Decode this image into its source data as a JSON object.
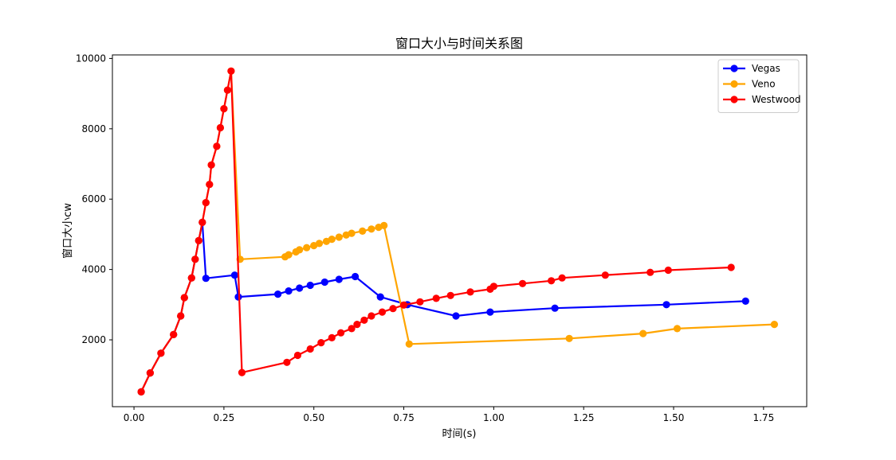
{
  "chart_data": {
    "type": "line",
    "title": "窗口大小与时间关系图",
    "xlabel": "时间(s)",
    "ylabel": "窗口大小cw",
    "xlim": [
      -0.06,
      1.87
    ],
    "ylim": [
      100,
      10100
    ],
    "x_ticks": [
      0.0,
      0.25,
      0.5,
      0.75,
      1.0,
      1.25,
      1.5,
      1.75
    ],
    "x_tick_labels": [
      "0.00",
      "0.25",
      "0.50",
      "0.75",
      "1.00",
      "1.25",
      "1.50",
      "1.75"
    ],
    "y_ticks": [
      2000,
      4000,
      6000,
      8000,
      10000
    ],
    "y_tick_labels": [
      "2000",
      "4000",
      "6000",
      "8000",
      "10000"
    ],
    "grid": false,
    "legend_position": "top-right",
    "series": [
      {
        "name": "Vegas",
        "color": "#0000ff",
        "x": [
          0.02,
          0.045,
          0.075,
          0.11,
          0.13,
          0.14,
          0.16,
          0.17,
          0.18,
          0.19,
          0.2,
          0.28,
          0.29,
          0.4,
          0.43,
          0.46,
          0.49,
          0.53,
          0.57,
          0.615,
          0.685,
          0.76,
          0.895,
          0.99,
          1.17,
          1.48,
          1.7
        ],
        "y": [
          520,
          1060,
          1620,
          2150,
          2680,
          3200,
          3760,
          4290,
          4820,
          5340,
          3750,
          3840,
          3220,
          3300,
          3390,
          3470,
          3550,
          3640,
          3720,
          3800,
          3220,
          3000,
          2680,
          2790,
          2900,
          3000,
          3100
        ]
      },
      {
        "name": "Veno",
        "color": "#ffa500",
        "x": [
          0.02,
          0.045,
          0.075,
          0.11,
          0.13,
          0.14,
          0.16,
          0.17,
          0.18,
          0.19,
          0.2,
          0.21,
          0.215,
          0.23,
          0.24,
          0.25,
          0.26,
          0.27,
          0.295,
          0.42,
          0.43,
          0.45,
          0.46,
          0.48,
          0.5,
          0.515,
          0.535,
          0.55,
          0.57,
          0.59,
          0.605,
          0.635,
          0.66,
          0.68,
          0.695,
          0.765,
          1.21,
          1.415,
          1.51,
          1.78
        ],
        "y": [
          520,
          1060,
          1620,
          2150,
          2680,
          3200,
          3760,
          4290,
          4820,
          5340,
          5900,
          6420,
          6970,
          7500,
          8030,
          8570,
          9100,
          9640,
          4290,
          4360,
          4420,
          4500,
          4560,
          4620,
          4680,
          4740,
          4800,
          4860,
          4920,
          4980,
          5030,
          5090,
          5150,
          5200,
          5250,
          1880,
          2040,
          2180,
          2320,
          2440
        ]
      },
      {
        "name": "Westwood",
        "color": "#ff0000",
        "x": [
          0.02,
          0.045,
          0.075,
          0.11,
          0.13,
          0.14,
          0.16,
          0.17,
          0.18,
          0.19,
          0.2,
          0.21,
          0.215,
          0.23,
          0.24,
          0.25,
          0.26,
          0.27,
          0.3,
          0.425,
          0.455,
          0.49,
          0.52,
          0.55,
          0.575,
          0.605,
          0.62,
          0.64,
          0.66,
          0.69,
          0.72,
          0.75,
          0.795,
          0.84,
          0.88,
          0.935,
          0.99,
          1.0,
          1.08,
          1.16,
          1.19,
          1.31,
          1.435,
          1.485,
          1.66
        ],
        "y": [
          520,
          1060,
          1620,
          2150,
          2680,
          3200,
          3760,
          4290,
          4820,
          5340,
          5900,
          6420,
          6970,
          7500,
          8030,
          8570,
          9100,
          9640,
          1070,
          1360,
          1560,
          1740,
          1920,
          2060,
          2200,
          2320,
          2440,
          2560,
          2680,
          2790,
          2890,
          2990,
          3080,
          3180,
          3260,
          3360,
          3440,
          3520,
          3600,
          3680,
          3760,
          3840,
          3920,
          3980,
          4060
        ]
      }
    ]
  }
}
